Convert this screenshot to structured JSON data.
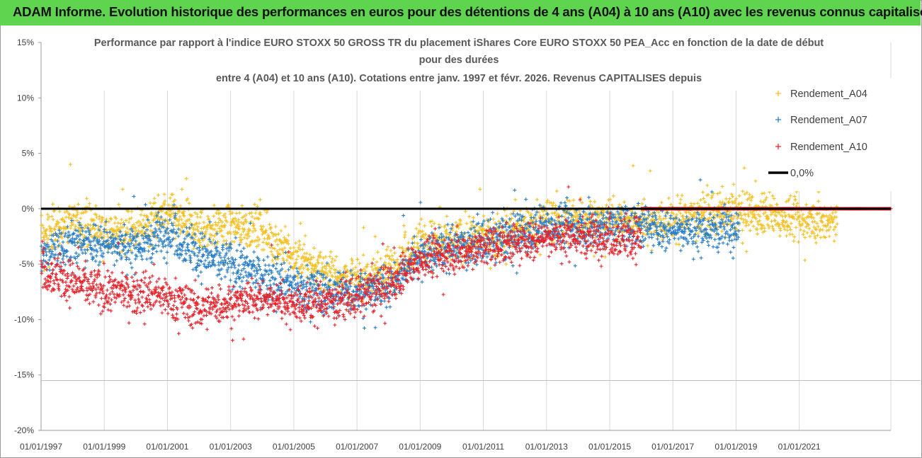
{
  "banner": {
    "text": "ADAM Informe. Evolution historique des performances en euros pour des détentions de 4 ans (A04) à 10 ans (A10) avec les revenus connus capitalisés"
  },
  "colors": {
    "banner_bg": "#5fd44f",
    "A04": "#f5c023",
    "A07": "#2a7fc9",
    "A10": "#e8232b",
    "zero_line": "#000000"
  },
  "chart_data": {
    "type": "scatter",
    "title_lines": [
      "Performance par rapport à l'indice EURO STOXX 50 GROSS TR  du placement iShares Core EURO STOXX 50 PEA_Acc en fonction de la date de début",
      "pour des durées",
      "entre 4 (A04) et 10 ans (A10). Cotations entre janv. 1997 et févr. 2026. Revenus CAPITALISES depuis"
    ],
    "x_unit": "year",
    "xlim": [
      1997.0,
      2023.9
    ],
    "ylim": [
      -20,
      15
    ],
    "y_ticks": [
      15,
      10,
      5,
      0,
      -5,
      -10,
      -15,
      -20
    ],
    "y_tick_labels": [
      "15%",
      "10%",
      "5%",
      "0%",
      "-5%",
      "-10%",
      "-15%",
      "-20%"
    ],
    "x_ticks": [
      1997,
      1999,
      2001,
      2003,
      2005,
      2007,
      2009,
      2011,
      2013,
      2015,
      2017,
      2019,
      2021
    ],
    "x_tick_labels": [
      "01/01/1997",
      "01/01/1999",
      "01/01/2001",
      "01/01/2003",
      "01/01/2005",
      "01/01/2007",
      "01/01/2009",
      "01/01/2011",
      "01/01/2013",
      "01/01/2015",
      "01/01/2017",
      "01/01/2019",
      "01/01/2021"
    ],
    "grid": "vertical",
    "legend_position": "right",
    "series": [
      {
        "name": "Rendement_A04",
        "marker": "plus",
        "color": "#f5c023",
        "x_range": [
          1997.0,
          2022.2
        ],
        "trend": [
          [
            1997.0,
            -2.5
          ],
          [
            1998.0,
            -1.0
          ],
          [
            1999.0,
            -2.0
          ],
          [
            2000.0,
            -1.8
          ],
          [
            2001.0,
            -0.5
          ],
          [
            2002.0,
            -2.0
          ],
          [
            2003.0,
            -1.5
          ],
          [
            2004.0,
            -1.8
          ],
          [
            2005.0,
            -4.5
          ],
          [
            2006.0,
            -5.5
          ],
          [
            2007.0,
            -6.5
          ],
          [
            2008.0,
            -5.5
          ],
          [
            2009.0,
            -3.0
          ],
          [
            2010.0,
            -3.0
          ],
          [
            2011.0,
            -2.5
          ],
          [
            2012.0,
            -2.0
          ],
          [
            2013.0,
            -1.0
          ],
          [
            2014.0,
            -1.0
          ],
          [
            2015.0,
            -0.8
          ],
          [
            2016.0,
            -1.2
          ],
          [
            2017.0,
            -1.0
          ],
          [
            2018.0,
            -0.5
          ],
          [
            2019.0,
            -0.5
          ],
          [
            2020.0,
            -0.5
          ],
          [
            2021.0,
            -1.0
          ],
          [
            2022.2,
            -1.0
          ]
        ],
        "spread": 1.6
      },
      {
        "name": "Rendement_A07",
        "marker": "plus",
        "color": "#2a7fc9",
        "x_range": [
          1997.0,
          2019.1
        ],
        "trend": [
          [
            1997.0,
            -4.5
          ],
          [
            1998.0,
            -3.0
          ],
          [
            1999.0,
            -3.0
          ],
          [
            2000.0,
            -3.5
          ],
          [
            2001.0,
            -2.0
          ],
          [
            2002.0,
            -4.0
          ],
          [
            2003.0,
            -5.0
          ],
          [
            2004.0,
            -6.0
          ],
          [
            2005.0,
            -7.0
          ],
          [
            2006.0,
            -7.5
          ],
          [
            2007.0,
            -7.5
          ],
          [
            2008.0,
            -7.0
          ],
          [
            2009.0,
            -4.0
          ],
          [
            2010.0,
            -3.5
          ],
          [
            2011.0,
            -3.0
          ],
          [
            2012.0,
            -2.5
          ],
          [
            2013.0,
            -1.5
          ],
          [
            2014.0,
            -1.5
          ],
          [
            2015.0,
            -1.5
          ],
          [
            2016.0,
            -1.5
          ],
          [
            2017.0,
            -1.8
          ],
          [
            2018.0,
            -2.0
          ],
          [
            2019.1,
            -1.5
          ]
        ],
        "spread": 1.6
      },
      {
        "name": "Rendement_A10",
        "marker": "plus",
        "color": "#e8232b",
        "x_range": [
          1997.0,
          2016.0
        ],
        "trend": [
          [
            1997.0,
            -5.5
          ],
          [
            1998.0,
            -6.5
          ],
          [
            1999.0,
            -7.5
          ],
          [
            2000.0,
            -7.5
          ],
          [
            2001.0,
            -8.0
          ],
          [
            2002.0,
            -9.0
          ],
          [
            2003.0,
            -8.5
          ],
          [
            2004.0,
            -8.0
          ],
          [
            2005.0,
            -8.5
          ],
          [
            2006.0,
            -8.5
          ],
          [
            2007.0,
            -8.0
          ],
          [
            2008.0,
            -7.0
          ],
          [
            2009.0,
            -4.5
          ],
          [
            2010.0,
            -4.0
          ],
          [
            2011.0,
            -3.5
          ],
          [
            2012.0,
            -3.0
          ],
          [
            2013.0,
            -2.5
          ],
          [
            2014.0,
            -2.5
          ],
          [
            2015.0,
            -2.5
          ],
          [
            2016.0,
            -2.5
          ]
        ],
        "spread": 1.5,
        "constant_segment": {
          "x_range": [
            2016.0,
            2023.9
          ],
          "value": 0.0
        }
      },
      {
        "name": "0,0%",
        "type": "line",
        "color": "#000000",
        "value": 0.0,
        "x_range": [
          1997.0,
          2023.9
        ]
      }
    ]
  }
}
